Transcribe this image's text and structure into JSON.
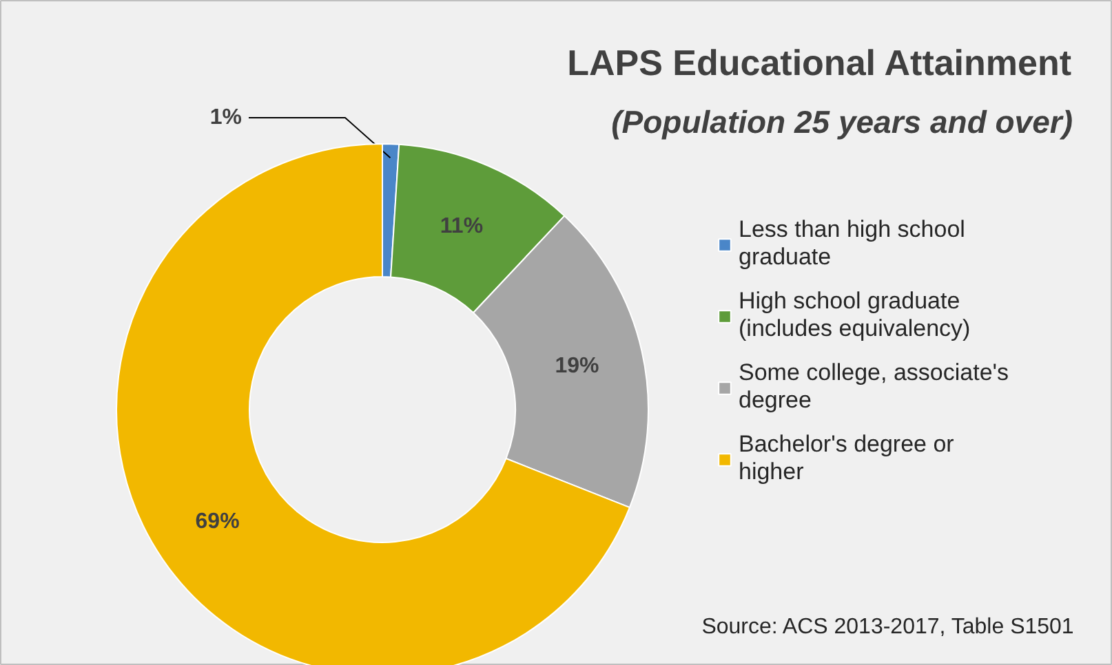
{
  "chart_data": {
    "type": "donut",
    "title": "LAPS Educational Attainment",
    "subtitle": "(Population 25 years and over)",
    "categories": [
      "Less than high school graduate",
      "High school graduate (includes equivalency)",
      "Some college, associate's degree",
      "Bachelor's degree or higher"
    ],
    "values": [
      1,
      11,
      19,
      69
    ],
    "colors": [
      "#4a86c8",
      "#5e9c3a",
      "#a6a6a6",
      "#f2b800"
    ],
    "value_labels": [
      "1%",
      "11%",
      "19%",
      "69%"
    ],
    "legend": "right",
    "annotations": [
      "Source: ACS 2013-2017, Table S1501"
    ]
  }
}
